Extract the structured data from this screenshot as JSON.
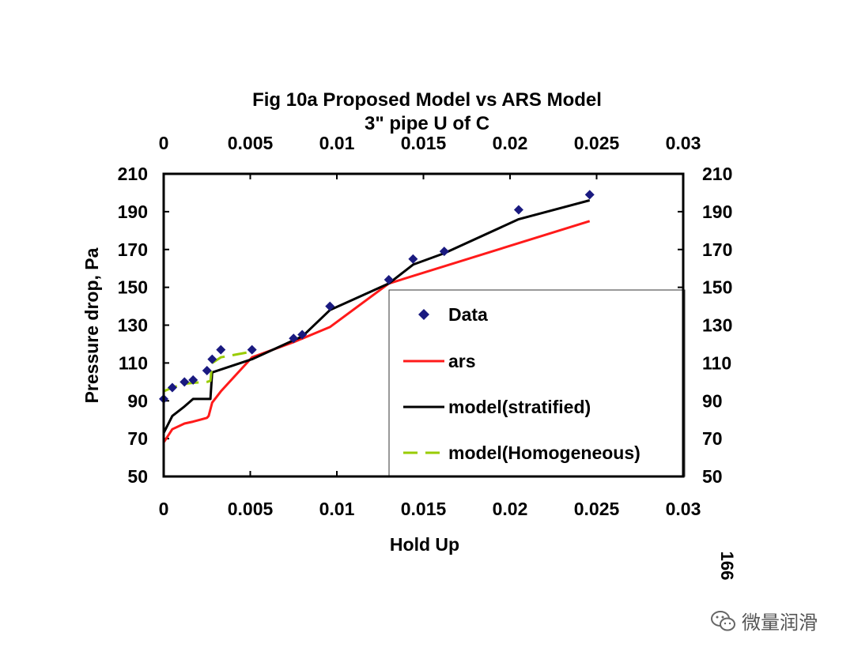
{
  "chart_data": {
    "type": "scatter",
    "title": "Fig 10a Proposed Model vs ARS Model",
    "subtitle": "3\" pipe U of C",
    "xlabel": "Hold Up",
    "ylabel": "Pressure drop, Pa",
    "xlim": [
      0,
      0.03
    ],
    "ylim": [
      50,
      210
    ],
    "x_ticks": [
      "0",
      "0.005",
      "0.01",
      "0.015",
      "0.02",
      "0.025",
      "0.03"
    ],
    "y_ticks": [
      "50",
      "70",
      "90",
      "110",
      "130",
      "150",
      "170",
      "190",
      "210"
    ],
    "grid": false,
    "legend_position": "bottom-right",
    "series": [
      {
        "name": "Data",
        "kind": "scatter",
        "marker": "diamond",
        "color": "#1a1a80",
        "x": [
          0.0,
          0.0005,
          0.0012,
          0.0017,
          0.0025,
          0.0028,
          0.0033,
          0.0051,
          0.0075,
          0.008,
          0.0096,
          0.013,
          0.0144,
          0.0162,
          0.0205,
          0.0246
        ],
        "y": [
          91,
          97,
          100,
          101,
          106,
          112,
          117,
          117,
          123,
          125,
          140,
          154,
          165,
          169,
          191,
          199
        ]
      },
      {
        "name": "ars",
        "kind": "line",
        "color": "#ff1a1a",
        "x": [
          0.0,
          0.0005,
          0.0012,
          0.0017,
          0.0025,
          0.0026,
          0.0028,
          0.0033,
          0.0051,
          0.0075,
          0.0096,
          0.013,
          0.0246
        ],
        "y": [
          68,
          75,
          78,
          79,
          81,
          82,
          89,
          95,
          113,
          121,
          129,
          152,
          185
        ]
      },
      {
        "name": "model(stratified)",
        "kind": "line",
        "color": "#000000",
        "x": [
          0.0,
          0.0005,
          0.0012,
          0.0017,
          0.0025,
          0.0027,
          0.0028,
          0.0051,
          0.0075,
          0.008,
          0.0096,
          0.013,
          0.0144,
          0.0162,
          0.0205,
          0.0246
        ],
        "y": [
          73,
          82,
          87,
          91,
          91,
          91,
          105,
          112,
          122,
          124,
          138,
          152,
          162,
          168,
          186,
          196
        ]
      },
      {
        "name": "model(Homogeneous)",
        "kind": "line",
        "dashed": true,
        "color": "#99cc00",
        "x": [
          0.0,
          0.0005,
          0.0012,
          0.0017,
          0.0025,
          0.0027,
          0.0028,
          0.0033,
          0.0051
        ],
        "y": [
          95,
          97,
          99,
          99.5,
          100,
          100.5,
          110,
          113,
          116
        ]
      }
    ]
  },
  "page_number": "166",
  "watermark": {
    "text": "微量润滑",
    "icon": "wechat-icon"
  }
}
